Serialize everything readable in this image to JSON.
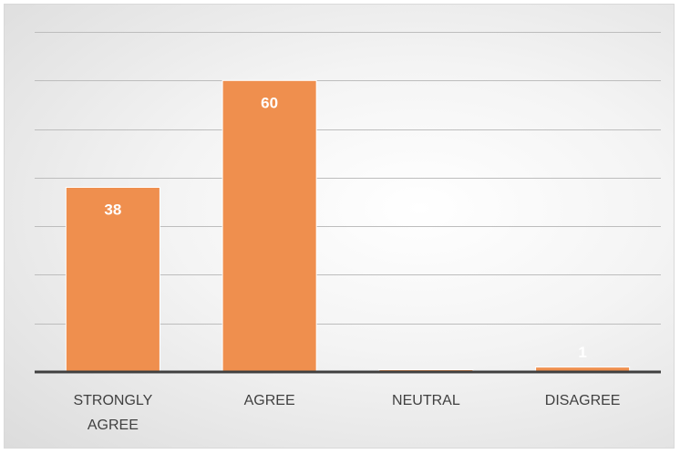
{
  "chart_data": {
    "type": "bar",
    "categories": [
      "STRONGLY AGREE",
      "AGREE",
      "NEUTRAL",
      "DISAGREE"
    ],
    "category_lines": [
      [
        "STRONGLY",
        "AGREE"
      ],
      [
        "AGREE"
      ],
      [
        "NEUTRAL"
      ],
      [
        "DISAGREE"
      ]
    ],
    "values": [
      38,
      60,
      0,
      1
    ],
    "data_labels": [
      "38",
      "60",
      "",
      "1"
    ],
    "ylim": [
      0,
      70
    ],
    "grid_step": 10,
    "grid": true,
    "legend": "none",
    "colors": {
      "bar": "#ef8f4e",
      "data_label": "#ffffff",
      "gridline": "#bdbdbd",
      "axis": "#404040",
      "category_text": "#404040"
    }
  }
}
